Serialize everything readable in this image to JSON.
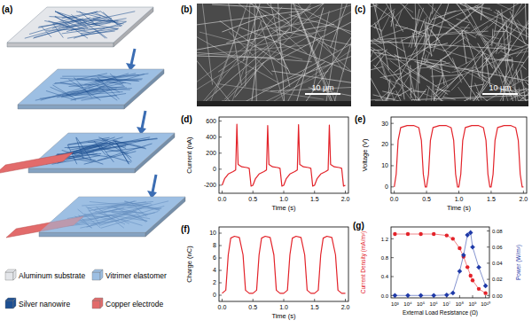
{
  "panel_labels": [
    "(a)",
    "(b)",
    "(c)",
    "(d)",
    "(e)",
    "(f)",
    "(g)"
  ],
  "schematic": {
    "legend": [
      {
        "label": "Aluminum substrate",
        "color": "#e4e6ea"
      },
      {
        "label": "Vitrimer elastomer",
        "color": "#9dbfe3"
      },
      {
        "label": "Silver nanowire",
        "color": "#1d4f91"
      },
      {
        "label": "Copper electrode",
        "color": "#e26b6b"
      }
    ]
  },
  "sem": [
    {
      "scale_bar": "10 μm"
    },
    {
      "scale_bar": "10 μm"
    }
  ],
  "chart_data": [
    {
      "type": "line",
      "xlabel": "Time (s)",
      "ylabel": "Current (nA)",
      "x": [
        0,
        0.04,
        0.1,
        0.18,
        0.22,
        0.24,
        0.26,
        0.32,
        0.4,
        0.44,
        0.47,
        0.5,
        0.54,
        0.6,
        0.68,
        0.72,
        0.74,
        0.76,
        0.82,
        0.9,
        0.94,
        0.97,
        1,
        1.04,
        1.1,
        1.18,
        1.22,
        1.24,
        1.26,
        1.32,
        1.4,
        1.44,
        1.47,
        1.5,
        1.54,
        1.6,
        1.68,
        1.72,
        1.74,
        1.76,
        1.82,
        1.9,
        1.94,
        1.97,
        2
      ],
      "values": [
        -200,
        -120,
        -60,
        -30,
        -10,
        560,
        60,
        30,
        20,
        10,
        -210,
        -200,
        -120,
        -60,
        -30,
        -10,
        545,
        60,
        30,
        20,
        10,
        -210,
        -200,
        -120,
        -60,
        -30,
        -10,
        555,
        60,
        30,
        20,
        10,
        -210,
        -200,
        -120,
        -60,
        -30,
        -10,
        550,
        60,
        30,
        20,
        10,
        -210,
        -200
      ],
      "color": "#e3232a",
      "xlim": [
        -0.05,
        2.05
      ],
      "xticks": [
        {
          "value": 0,
          "label": "0.0"
        },
        {
          "value": 0.5,
          "label": "0.5"
        },
        {
          "value": 1,
          "label": "1.0"
        },
        {
          "value": 1.5,
          "label": "1.5"
        },
        {
          "value": 2,
          "label": "2.0"
        }
      ],
      "ylim": [
        -300,
        650
      ],
      "yticks": [
        -200,
        0,
        200,
        400,
        600
      ],
      "grid": false
    },
    {
      "type": "line",
      "xlabel": "Time (s)",
      "ylabel": "Voltage (V)",
      "x": [
        0,
        0.03,
        0.06,
        0.1,
        0.2,
        0.3,
        0.38,
        0.42,
        0.45,
        0.48,
        0.5,
        0.53,
        0.56,
        0.6,
        0.7,
        0.8,
        0.88,
        0.92,
        0.95,
        0.98,
        1,
        1.03,
        1.06,
        1.1,
        1.2,
        1.3,
        1.38,
        1.42,
        1.45,
        1.48,
        1.5,
        1.53,
        1.56,
        1.6,
        1.7,
        1.8,
        1.88,
        1.92,
        1.95,
        1.98,
        2
      ],
      "values": [
        0,
        6,
        22,
        28,
        29,
        29,
        28,
        22,
        6,
        0,
        0,
        6,
        22,
        28,
        29,
        29,
        28,
        22,
        6,
        0,
        0,
        6,
        22,
        28,
        29,
        29,
        28,
        22,
        6,
        0,
        0,
        6,
        22,
        28,
        29,
        29,
        28,
        22,
        6,
        0,
        0
      ],
      "color": "#e3232a",
      "xlim": [
        -0.05,
        2.05
      ],
      "xticks": [
        {
          "value": 0,
          "label": "0.0"
        },
        {
          "value": 0.5,
          "label": "0.5"
        },
        {
          "value": 1,
          "label": "1.0"
        },
        {
          "value": 1.5,
          "label": "1.5"
        },
        {
          "value": 2,
          "label": "2.0"
        }
      ],
      "ylim": [
        -3,
        33
      ],
      "yticks": [
        0,
        10,
        20,
        30
      ],
      "grid": false
    },
    {
      "type": "line",
      "xlabel": "Time (s)",
      "ylabel": "Charge (nC)",
      "x": [
        0,
        0.06,
        0.1,
        0.14,
        0.2,
        0.28,
        0.34,
        0.38,
        0.44,
        0.5,
        0.56,
        0.6,
        0.64,
        0.7,
        0.78,
        0.84,
        0.88,
        0.94,
        1,
        1.06,
        1.1,
        1.14,
        1.2,
        1.28,
        1.34,
        1.38,
        1.44,
        1.5,
        1.56,
        1.6,
        1.64,
        1.7,
        1.78,
        1.84,
        1.88,
        1.94,
        2
      ],
      "values": [
        0.3,
        0.8,
        6.5,
        9.2,
        9.5,
        9.3,
        6.5,
        0.8,
        0.3,
        0.3,
        0.8,
        6.5,
        9.2,
        9.5,
        9.3,
        6.5,
        0.8,
        0.3,
        0.3,
        0.8,
        6.5,
        9.2,
        9.5,
        9.3,
        6.5,
        0.8,
        0.3,
        0.3,
        0.8,
        6.5,
        9.2,
        9.5,
        9.3,
        6.5,
        0.8,
        0.3,
        0.3
      ],
      "color": "#e3232a",
      "xlim": [
        -0.05,
        2.05
      ],
      "xticks": [
        {
          "value": 0,
          "label": "0.0"
        },
        {
          "value": 0.5,
          "label": "0.5"
        },
        {
          "value": 1,
          "label": "1.0"
        },
        {
          "value": 1.5,
          "label": "1.5"
        },
        {
          "value": 2,
          "label": "2.0"
        }
      ],
      "ylim": [
        -1,
        11
      ],
      "yticks": [
        0,
        2,
        4,
        6,
        8,
        10
      ],
      "grid": false
    },
    {
      "type": "line",
      "xlabel": "External Load Resistance (Ω)",
      "ylabel": "Current Density (mA/m²)",
      "y2label": "Power (W/m²)",
      "log": "x",
      "x": [
        1000,
        10000,
        100000,
        1000000,
        10000000,
        30000000,
        100000000,
        200000000,
        400000000,
        700000000,
        1000000000,
        3000000000,
        10000000000
      ],
      "series": [
        {
          "color": "#e3232a",
          "marker": "circle",
          "values": [
            1.3,
            1.3,
            1.3,
            1.3,
            1.27,
            1.2,
            1.0,
            0.82,
            0.6,
            0.42,
            0.32,
            0.14,
            0.05
          ]
        },
        {
          "color": "#1f3aa8",
          "marker": "diamond",
          "axis": "y2",
          "values": [
            0,
            0,
            0,
            0,
            0.0005,
            0.003,
            0.03,
            0.05,
            0.075,
            0.078,
            0.06,
            0.035,
            0.012
          ]
        }
      ],
      "xlim": [
        500,
        20000000000
      ],
      "xticks": [
        {
          "value": 1000,
          "label": "10³"
        },
        {
          "value": 10000,
          "label": "10⁴"
        },
        {
          "value": 100000,
          "label": "10⁵"
        },
        {
          "value": 1000000,
          "label": "10⁶"
        },
        {
          "value": 10000000,
          "label": "10⁷"
        },
        {
          "value": 100000000,
          "label": "10⁸"
        },
        {
          "value": 1000000000,
          "label": "10⁹"
        },
        {
          "value": 10000000000,
          "label": "10¹⁰"
        }
      ],
      "ylim": [
        -0.05,
        1.45
      ],
      "yticks": [
        {
          "value": 0,
          "label": "0.0"
        },
        {
          "value": 0.4,
          "label": "0.4"
        },
        {
          "value": 0.8,
          "label": "0.8"
        },
        {
          "value": 1.2,
          "label": "1.2"
        }
      ],
      "y2lim": [
        -0.003,
        0.085
      ],
      "y2ticks": [
        {
          "value": 0,
          "label": "0.00"
        },
        {
          "value": 0.02,
          "label": "0.02"
        },
        {
          "value": 0.04,
          "label": "0.04"
        },
        {
          "value": 0.06,
          "label": "0.06"
        },
        {
          "value": 0.08,
          "label": "0.08"
        }
      ],
      "grid": false
    }
  ]
}
